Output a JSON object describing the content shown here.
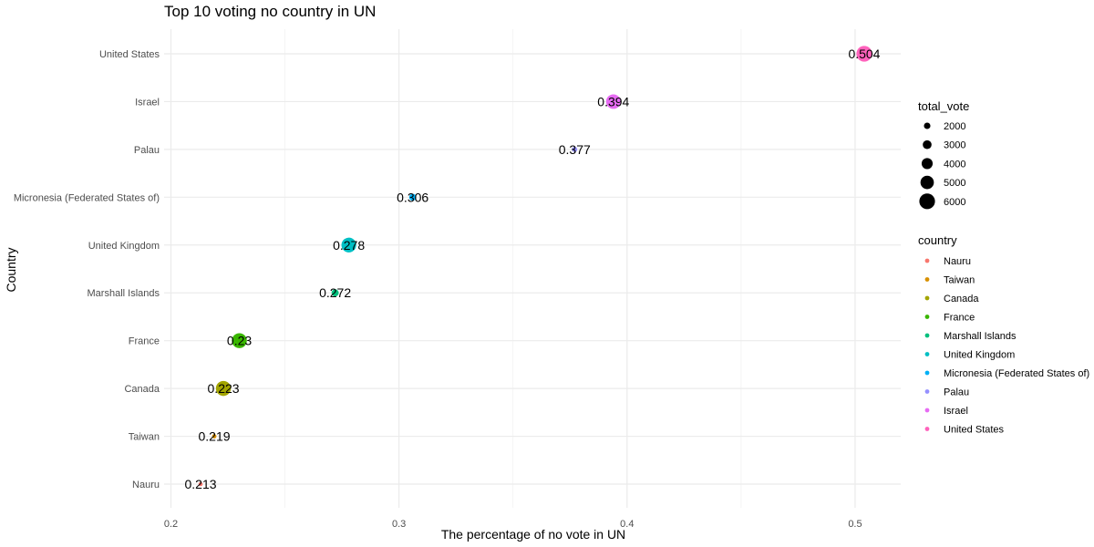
{
  "chart_data": {
    "type": "scatter",
    "title": "Top 10 voting no country in UN",
    "xlabel": "The percentage of no vote in UN",
    "ylabel": "Country",
    "xlim": [
      0.197,
      0.52
    ],
    "xticks": [
      0.2,
      0.3,
      0.4,
      0.5
    ],
    "xtick_labels": [
      "0.2",
      "0.3",
      "0.4",
      "0.5"
    ],
    "grid": true,
    "categories": [
      "Nauru",
      "Taiwan",
      "Canada",
      "France",
      "Marshall Islands",
      "United Kingdom",
      "Micronesia (Federated States of)",
      "Palau",
      "Israel",
      "United States"
    ],
    "points": [
      {
        "country": "Nauru",
        "x": 0.213,
        "label": "0.213",
        "total_vote": 1000,
        "color": "#F8766D"
      },
      {
        "country": "Taiwan",
        "x": 0.219,
        "label": "0.219",
        "total_vote": 1100,
        "color": "#D89000"
      },
      {
        "country": "Canada",
        "x": 0.223,
        "label": "0.223",
        "total_vote": 5700,
        "color": "#A3A500"
      },
      {
        "country": "France",
        "x": 0.23,
        "label": "0.23",
        "total_vote": 5700,
        "color": "#39B600"
      },
      {
        "country": "Marshall Islands",
        "x": 0.272,
        "label": "0.272",
        "total_vote": 2300,
        "color": "#00BF7D"
      },
      {
        "country": "United Kingdom",
        "x": 0.278,
        "label": "0.278",
        "total_vote": 5600,
        "color": "#00BFC4"
      },
      {
        "country": "Micronesia (Federated States of)",
        "x": 0.306,
        "label": "0.306",
        "total_vote": 2200,
        "color": "#00B0F6"
      },
      {
        "country": "Palau",
        "x": 0.377,
        "label": "0.377",
        "total_vote": 1500,
        "color": "#9590FF"
      },
      {
        "country": "Israel",
        "x": 0.394,
        "label": "0.394",
        "total_vote": 5500,
        "color": "#E76BF3"
      },
      {
        "country": "United States",
        "x": 0.504,
        "label": "0.504",
        "total_vote": 6000,
        "color": "#FF62BC"
      }
    ],
    "legends": {
      "size": {
        "title": "total_vote",
        "breaks": [
          2000,
          3000,
          4000,
          5000,
          6000
        ],
        "labels": [
          "2000",
          "3000",
          "4000",
          "5000",
          "6000"
        ]
      },
      "color": {
        "title": "country",
        "entries": [
          "Nauru",
          "Taiwan",
          "Canada",
          "France",
          "Marshall Islands",
          "United Kingdom",
          "Micronesia (Federated States of)",
          "Palau",
          "Israel",
          "United States"
        ],
        "colors": [
          "#F8766D",
          "#D89000",
          "#A3A500",
          "#39B600",
          "#00BF7D",
          "#00BFC4",
          "#00B0F6",
          "#9590FF",
          "#E76BF3",
          "#FF62BC"
        ]
      },
      "placement": "right"
    }
  }
}
